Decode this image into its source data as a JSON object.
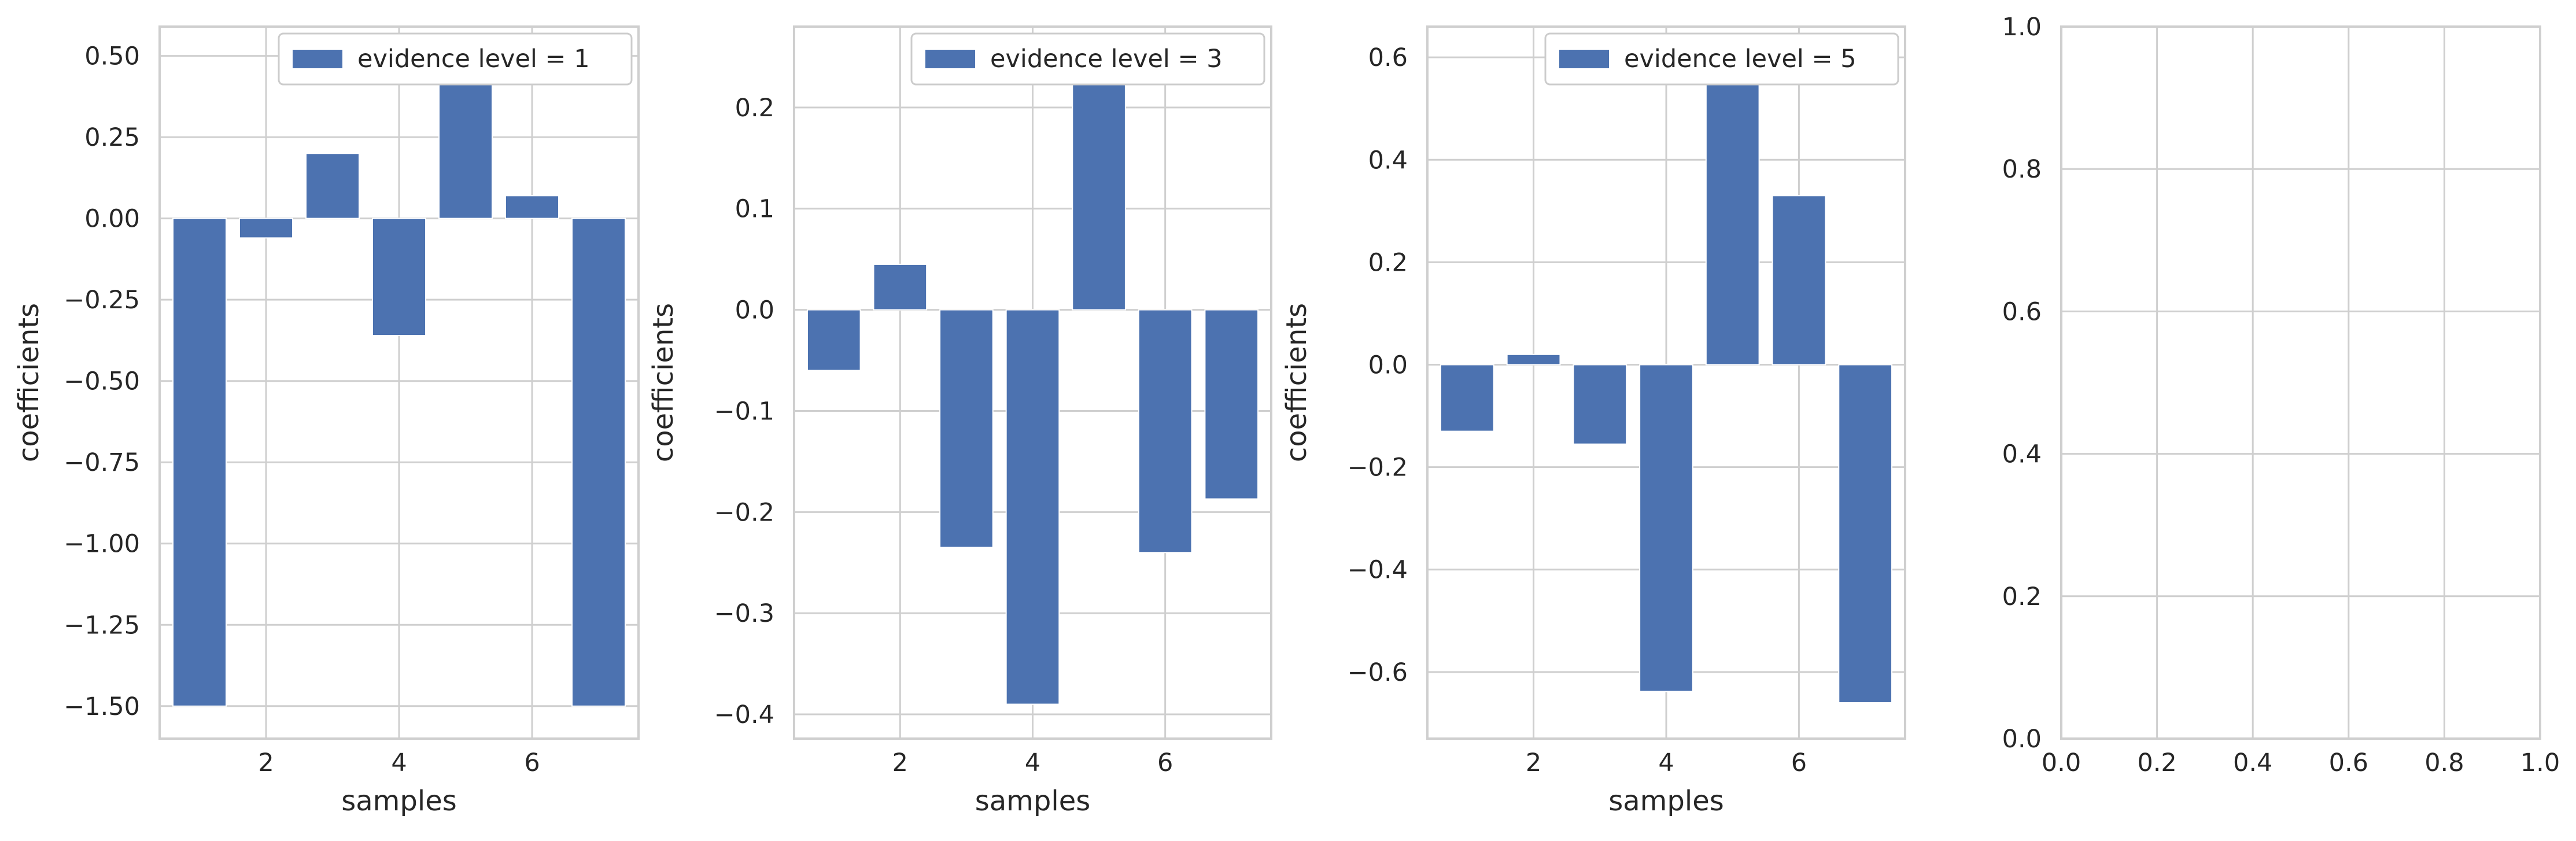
{
  "chart_data": [
    {
      "type": "bar",
      "x": [
        1,
        2,
        3,
        4,
        5,
        6,
        7
      ],
      "values": [
        -1.5,
        -0.06,
        0.2,
        -0.36,
        0.47,
        0.07,
        -1.5
      ],
      "series": [
        {
          "name": "evidence level = 1",
          "values": [
            -1.5,
            -0.06,
            0.2,
            -0.36,
            0.47,
            0.07,
            -1.5
          ]
        }
      ],
      "xlabel": "samples",
      "ylabel": "coefficients",
      "xlim": [
        0.4,
        7.6
      ],
      "ylim": [
        -1.6,
        0.59
      ],
      "xticks": [
        2,
        4,
        6
      ],
      "xtick_labels": [
        "2",
        "4",
        "6"
      ],
      "yticks": [
        0.5,
        0.25,
        0.0,
        -0.25,
        -0.5,
        -0.75,
        -1.0,
        -1.25,
        -1.5
      ],
      "ytick_labels": [
        "0.50",
        "0.25",
        "0.00",
        "−0.25",
        "−0.50",
        "−0.75",
        "−1.00",
        "−1.25",
        "−1.50"
      ],
      "legend": "top-right",
      "grid": true,
      "color": "#4c72b0"
    },
    {
      "type": "bar",
      "x": [
        1,
        2,
        3,
        4,
        5,
        6,
        7
      ],
      "values": [
        -0.06,
        0.045,
        -0.235,
        -0.39,
        0.245,
        -0.24,
        -0.187
      ],
      "series": [
        {
          "name": "evidence level = 3",
          "values": [
            -0.06,
            0.045,
            -0.235,
            -0.39,
            0.245,
            -0.24,
            -0.187
          ]
        }
      ],
      "xlabel": "samples",
      "ylabel": "coefficients",
      "xlim": [
        0.4,
        7.6
      ],
      "ylim": [
        -0.424,
        0.28
      ],
      "xticks": [
        2,
        4,
        6
      ],
      "xtick_labels": [
        "2",
        "4",
        "6"
      ],
      "yticks": [
        0.2,
        0.1,
        0.0,
        -0.1,
        -0.2,
        -0.3,
        -0.4
      ],
      "ytick_labels": [
        "0.2",
        "0.1",
        "0.0",
        "−0.1",
        "−0.2",
        "−0.3",
        "−0.4"
      ],
      "legend": "top-right",
      "grid": true,
      "color": "#4c72b0"
    },
    {
      "type": "bar",
      "x": [
        1,
        2,
        3,
        4,
        5,
        6,
        7
      ],
      "values": [
        -0.13,
        0.02,
        -0.155,
        -0.638,
        0.615,
        0.33,
        -0.66
      ],
      "series": [
        {
          "name": "evidence level = 5",
          "values": [
            -0.13,
            0.02,
            -0.155,
            -0.638,
            0.615,
            0.33,
            -0.66
          ]
        }
      ],
      "xlabel": "samples",
      "ylabel": "coefficients",
      "xlim": [
        0.4,
        7.6
      ],
      "ylim": [
        -0.73,
        0.66
      ],
      "xticks": [
        2,
        4,
        6
      ],
      "xtick_labels": [
        "2",
        "4",
        "6"
      ],
      "yticks": [
        0.6,
        0.4,
        0.2,
        0.0,
        -0.2,
        -0.4,
        -0.6
      ],
      "ytick_labels": [
        "0.6",
        "0.4",
        "0.2",
        "0.0",
        "−0.2",
        "−0.4",
        "−0.6"
      ],
      "legend": "top-right",
      "grid": true,
      "color": "#4c72b0"
    },
    {
      "type": "bar",
      "x": [],
      "values": [],
      "series": [],
      "xlabel": "",
      "ylabel": "",
      "xlim": [
        0.0,
        1.0
      ],
      "ylim": [
        0.0,
        1.0
      ],
      "xticks": [
        0.0,
        0.2,
        0.4,
        0.6,
        0.8,
        1.0
      ],
      "xtick_labels": [
        "0.0",
        "0.2",
        "0.4",
        "0.6",
        "0.8",
        "1.0"
      ],
      "yticks": [
        0.0,
        0.2,
        0.4,
        0.6,
        0.8,
        1.0
      ],
      "ytick_labels": [
        "0.0",
        "0.2",
        "0.4",
        "0.6",
        "0.8",
        "1.0"
      ],
      "legend": "none",
      "grid": true,
      "color": "#4c72b0"
    }
  ]
}
